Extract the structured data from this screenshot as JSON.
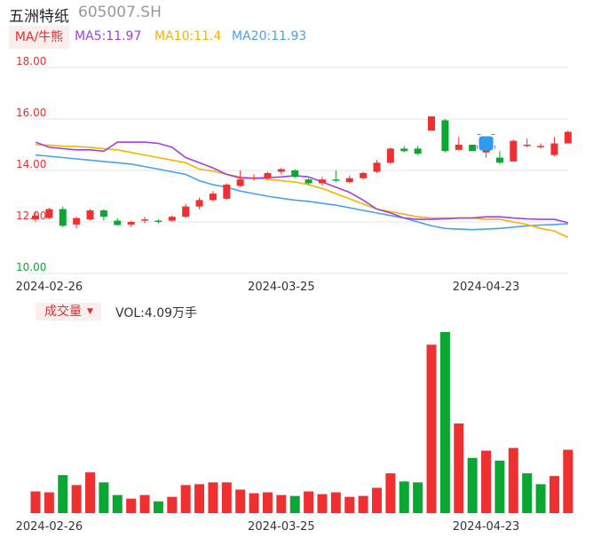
{
  "header": {
    "name": "五洲特纸",
    "code": "605007.SH"
  },
  "ma_selector": {
    "label": "MA/牛熊"
  },
  "ma_legend": {
    "ma5": "MA5:11.97",
    "ma10": "MA10:11.4",
    "ma20": "MA20:11.93"
  },
  "volume_selector": {
    "label": "成交量"
  },
  "volume_legend": "VOL:4.09万手",
  "colors": {
    "up": "#f03030",
    "down": "#0aa832",
    "ma5": "#a040e8",
    "ma10": "#f5b400",
    "ma20": "#4a9ff5",
    "grid": "#e6e6e6",
    "axis_text": "#666666"
  },
  "chart_data": [
    {
      "type": "candlestick",
      "ylim": [
        10,
        18
      ],
      "y_ticks": [
        "18.00",
        "16.00",
        "14.00",
        "12.00",
        "10.00"
      ],
      "x_tick_labels": [
        {
          "index": 1,
          "label": "2024-02-26"
        },
        {
          "index": 18,
          "label": "2024-03-25"
        },
        {
          "index": 33,
          "label": "2024-04-23"
        }
      ],
      "candles": [
        {
          "o": 12.1,
          "c": 12.25,
          "h": 12.4,
          "l": 12.0
        },
        {
          "o": 12.15,
          "c": 12.5,
          "h": 12.55,
          "l": 12.1
        },
        {
          "o": 12.5,
          "c": 11.85,
          "h": 12.6,
          "l": 11.8
        },
        {
          "o": 11.9,
          "c": 12.15,
          "h": 12.2,
          "l": 11.75
        },
        {
          "o": 12.1,
          "c": 12.45,
          "h": 12.5,
          "l": 12.05
        },
        {
          "o": 12.45,
          "c": 12.2,
          "h": 12.5,
          "l": 12.05
        },
        {
          "o": 12.05,
          "c": 11.88,
          "h": 12.15,
          "l": 11.85
        },
        {
          "o": 11.9,
          "c": 12.0,
          "h": 12.05,
          "l": 11.8
        },
        {
          "o": 12.05,
          "c": 12.1,
          "h": 12.2,
          "l": 11.95
        },
        {
          "o": 12.05,
          "c": 12.0,
          "h": 12.1,
          "l": 11.95
        },
        {
          "o": 12.05,
          "c": 12.2,
          "h": 12.25,
          "l": 12.0
        },
        {
          "o": 12.2,
          "c": 12.6,
          "h": 12.7,
          "l": 12.15
        },
        {
          "o": 12.6,
          "c": 12.85,
          "h": 12.95,
          "l": 12.5
        },
        {
          "o": 12.85,
          "c": 13.1,
          "h": 13.2,
          "l": 12.8
        },
        {
          "o": 12.9,
          "c": 13.45,
          "h": 13.5,
          "l": 12.85
        },
        {
          "o": 13.4,
          "c": 13.65,
          "h": 14.0,
          "l": 13.35
        },
        {
          "o": 13.7,
          "c": 13.72,
          "h": 13.85,
          "l": 13.6
        },
        {
          "o": 13.7,
          "c": 13.9,
          "h": 13.95,
          "l": 13.65
        },
        {
          "o": 13.95,
          "c": 14.05,
          "h": 14.1,
          "l": 13.85
        },
        {
          "o": 14.0,
          "c": 13.75,
          "h": 14.05,
          "l": 13.7
        },
        {
          "o": 13.65,
          "c": 13.5,
          "h": 13.7,
          "l": 13.45
        },
        {
          "o": 13.5,
          "c": 13.65,
          "h": 13.75,
          "l": 13.4
        },
        {
          "o": 13.65,
          "c": 13.6,
          "h": 14.0,
          "l": 13.55
        },
        {
          "o": 13.55,
          "c": 13.7,
          "h": 13.8,
          "l": 13.5
        },
        {
          "o": 13.7,
          "c": 13.9,
          "h": 13.95,
          "l": 13.65
        },
        {
          "o": 13.95,
          "c": 14.3,
          "h": 14.4,
          "l": 13.9
        },
        {
          "o": 14.3,
          "c": 14.85,
          "h": 14.9,
          "l": 14.25
        },
        {
          "o": 14.85,
          "c": 14.75,
          "h": 14.95,
          "l": 14.7
        },
        {
          "o": 14.85,
          "c": 14.65,
          "h": 14.95,
          "l": 14.6
        },
        {
          "o": 15.55,
          "c": 16.1,
          "h": 16.1,
          "l": 15.55
        },
        {
          "o": 15.95,
          "c": 14.75,
          "h": 16.0,
          "l": 14.7
        },
        {
          "o": 14.8,
          "c": 15.0,
          "h": 15.3,
          "l": 14.8
        },
        {
          "o": 15.0,
          "c": 14.75,
          "h": 15.0,
          "l": 14.75
        },
        {
          "o": 14.7,
          "c": 14.8,
          "h": 15.0,
          "l": 14.5
        },
        {
          "o": 14.5,
          "c": 14.3,
          "h": 14.75,
          "l": 14.25
        },
        {
          "o": 14.35,
          "c": 15.15,
          "h": 15.2,
          "l": 14.35
        },
        {
          "o": 14.95,
          "c": 15.0,
          "h": 15.25,
          "l": 14.9
        },
        {
          "o": 14.9,
          "c": 14.95,
          "h": 15.05,
          "l": 14.85
        },
        {
          "o": 14.6,
          "c": 15.05,
          "h": 15.3,
          "l": 14.55
        },
        {
          "o": 15.05,
          "c": 15.5,
          "h": 15.55,
          "l": 15.05
        }
      ],
      "ma5": [
        15.1,
        14.9,
        14.85,
        14.8,
        14.8,
        14.75,
        15.1,
        15.1,
        15.1,
        15.05,
        14.9,
        14.5,
        14.3,
        14.1,
        13.85,
        13.7,
        13.7,
        13.72,
        13.75,
        13.8,
        13.75,
        13.55,
        13.35,
        13.15,
        12.85,
        12.5,
        12.35,
        12.15,
        12.1,
        12.1,
        12.12,
        12.15,
        12.15,
        12.2,
        12.2,
        12.15,
        12.12,
        12.1,
        12.1,
        11.97
      ],
      "ma10": [
        15.0,
        14.98,
        14.95,
        14.93,
        14.9,
        14.85,
        14.8,
        14.7,
        14.6,
        14.5,
        14.4,
        14.3,
        14.05,
        13.98,
        13.85,
        13.75,
        13.7,
        13.66,
        13.6,
        13.55,
        13.45,
        13.3,
        13.1,
        12.9,
        12.7,
        12.5,
        12.4,
        12.3,
        12.2,
        12.15,
        12.15,
        12.15,
        12.15,
        12.1,
        12.1,
        12.0,
        11.9,
        11.75,
        11.65,
        11.4
      ],
      "ma20": [
        14.6,
        14.55,
        14.5,
        14.45,
        14.4,
        14.35,
        14.3,
        14.25,
        14.15,
        14.05,
        13.95,
        13.85,
        13.6,
        13.45,
        13.35,
        13.2,
        13.1,
        13.0,
        12.92,
        12.85,
        12.8,
        12.72,
        12.65,
        12.55,
        12.45,
        12.35,
        12.25,
        12.15,
        12.0,
        11.85,
        11.75,
        11.72,
        11.7,
        11.72,
        11.75,
        11.8,
        11.85,
        11.88,
        11.9,
        11.93
      ]
    },
    {
      "type": "bar",
      "title": "成交量",
      "values_relative": [
        0.12,
        0.115,
        0.21,
        0.155,
        0.225,
        0.17,
        0.1,
        0.08,
        0.1,
        0.065,
        0.09,
        0.155,
        0.16,
        0.17,
        0.17,
        0.13,
        0.11,
        0.115,
        0.1,
        0.095,
        0.12,
        0.105,
        0.115,
        0.09,
        0.095,
        0.14,
        0.22,
        0.175,
        0.17,
        0.93,
        1.0,
        0.495,
        0.305,
        0.345,
        0.29,
        0.36,
        0.22,
        0.16,
        0.205,
        0.35
      ],
      "directions": [
        "up",
        "up",
        "down",
        "up",
        "up",
        "down",
        "down",
        "up",
        "up",
        "down",
        "up",
        "up",
        "up",
        "up",
        "up",
        "up",
        "up",
        "up",
        "up",
        "down",
        "up",
        "up",
        "up",
        "up",
        "up",
        "up",
        "up",
        "down",
        "down",
        "up",
        "down",
        "up",
        "down",
        "up",
        "down",
        "up",
        "down",
        "down",
        "up",
        "up"
      ]
    }
  ]
}
